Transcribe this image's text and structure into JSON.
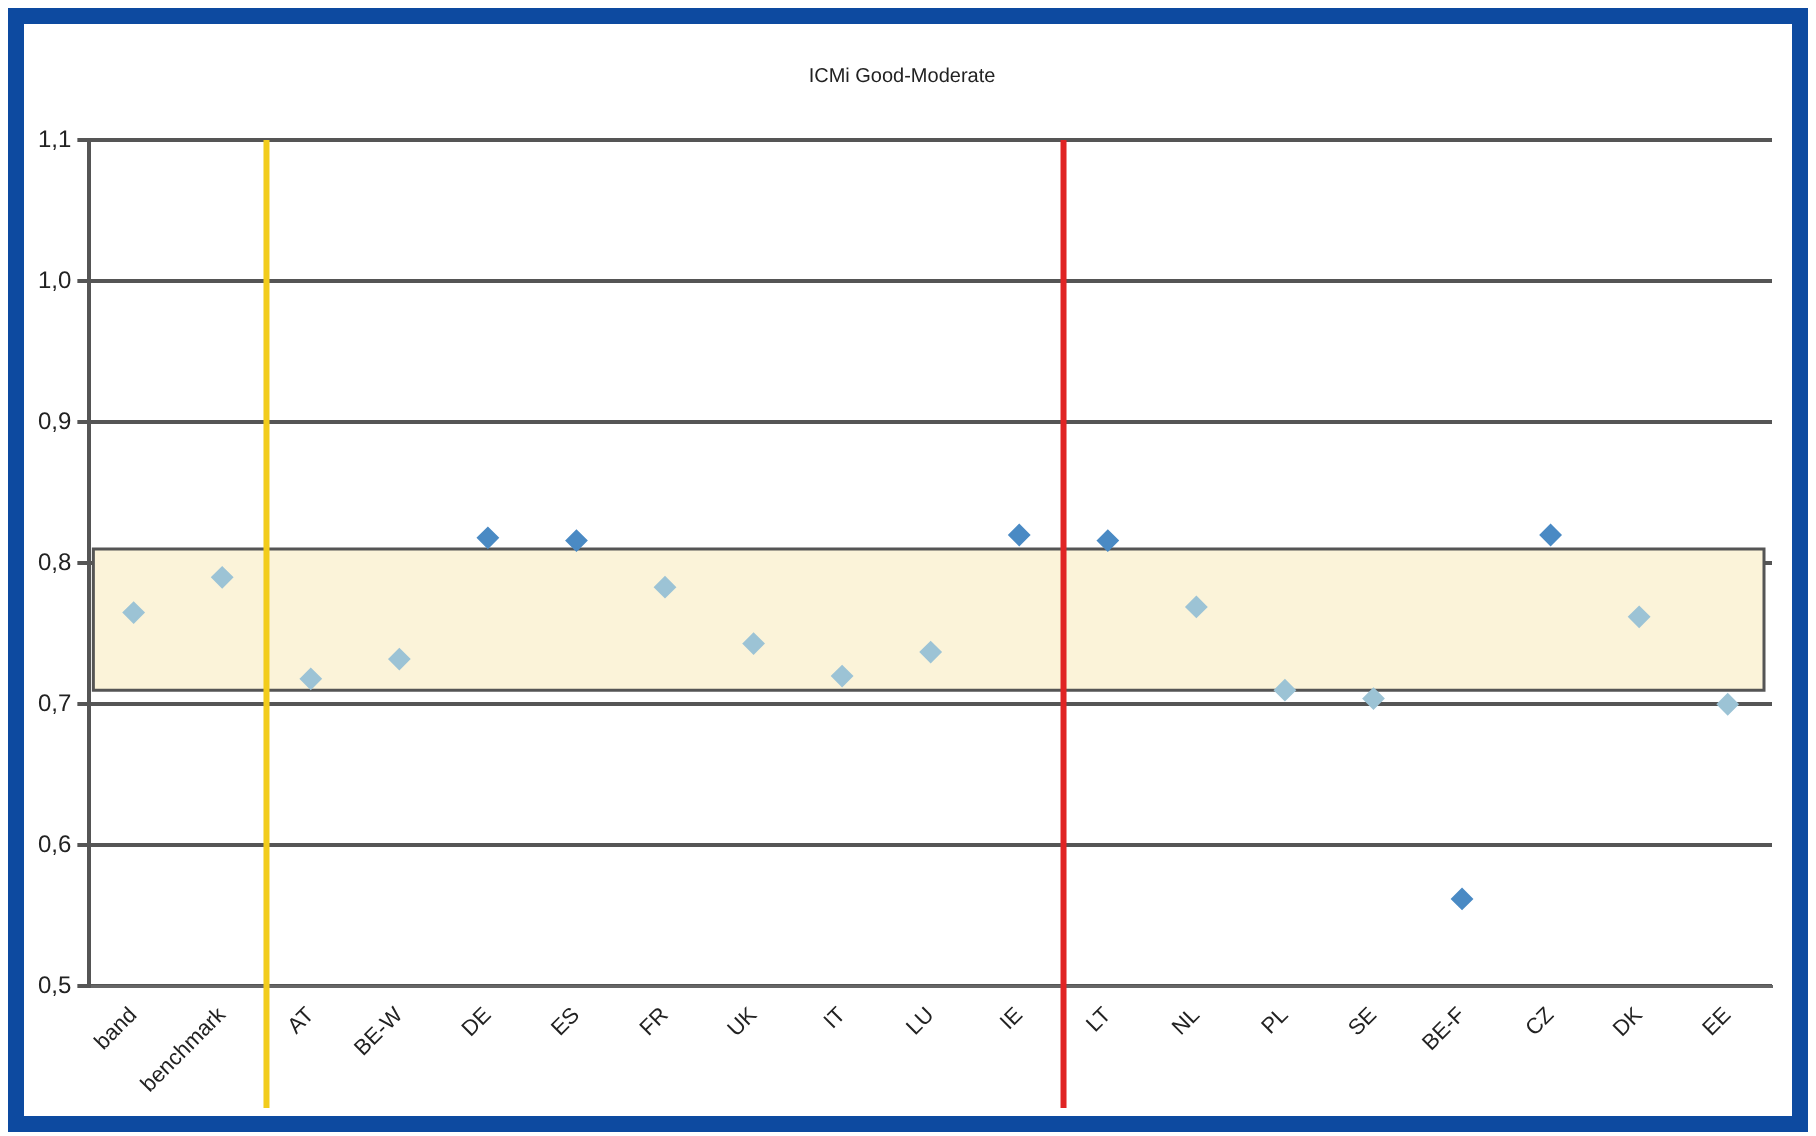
{
  "chart_data": {
    "type": "scatter",
    "title": "ICMi Good-Moderate",
    "categories": [
      "band",
      "benchmark",
      "AT",
      "BE-W",
      "DE",
      "ES",
      "FR",
      "UK",
      "IT",
      "LU",
      "IE",
      "LT",
      "NL",
      "PL",
      "SE",
      "BE-F",
      "CZ",
      "DK",
      "EE"
    ],
    "values": [
      0.765,
      0.79,
      0.718,
      0.732,
      0.818,
      0.816,
      0.783,
      0.743,
      0.72,
      0.737,
      0.82,
      0.816,
      0.769,
      0.71,
      0.704,
      0.562,
      0.82,
      0.762,
      0.7
    ],
    "colors": [
      "#9cc3d5",
      "#9cc3d5",
      "#9cc3d5",
      "#9cc3d5",
      "#4a8ac4",
      "#4a8ac4",
      "#9cc3d5",
      "#9cc3d5",
      "#9cc3d5",
      "#9cc3d5",
      "#4a8ac4",
      "#4a8ac4",
      "#9cc3d5",
      "#9cc3d5",
      "#9cc3d5",
      "#4a8ac4",
      "#4a8ac4",
      "#9cc3d5",
      "#9cc3d5"
    ],
    "ylim": [
      0.5,
      1.1
    ],
    "yticks": [
      {
        "value": 0.5,
        "label": "0,5"
      },
      {
        "value": 0.6,
        "label": "0,6"
      },
      {
        "value": 0.7,
        "label": "0,7"
      },
      {
        "value": 0.8,
        "label": "0,8"
      },
      {
        "value": 0.9,
        "label": "0,9"
      },
      {
        "value": 1.0,
        "label": "1,0"
      },
      {
        "value": 1.1,
        "label": "1,1"
      }
    ],
    "bands": [
      {
        "axis": "y",
        "from": 0.71,
        "to": 0.81,
        "color": "#fbf3d9"
      }
    ],
    "ref_lines": [
      {
        "axis": "x",
        "value": "AT",
        "color": "#f2cc1c"
      },
      {
        "axis": "x",
        "value": "LT",
        "color": "#e02424"
      }
    ],
    "grid": "y",
    "marker": "diamond",
    "legend": false
  }
}
